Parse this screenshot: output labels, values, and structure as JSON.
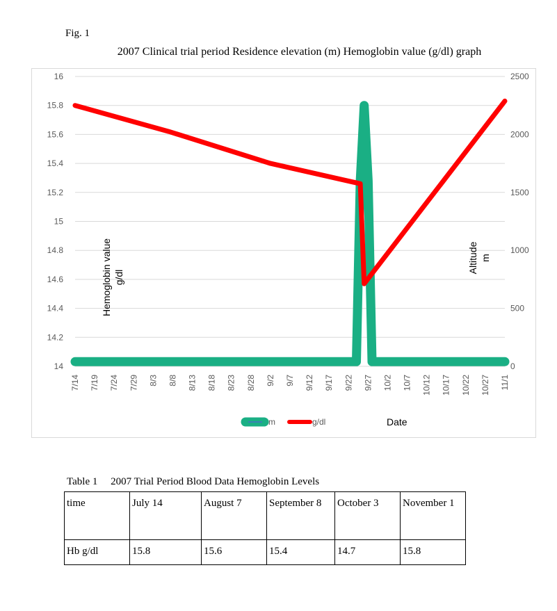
{
  "figure": {
    "label": "Fig. 1",
    "title": "2007 Clinical trial period Residence elevation (m) Hemoglobin value (g/dl) graph"
  },
  "chart_data": {
    "type": "line",
    "x_tick_labels": [
      "7/14",
      "7/19",
      "7/24",
      "7/29",
      "8/3",
      "8/8",
      "8/13",
      "8/18",
      "8/23",
      "8/28",
      "9/2",
      "9/7",
      "9/12",
      "9/17",
      "9/22",
      "9/27",
      "10/2",
      "10/7",
      "10/12",
      "10/17",
      "10/22",
      "10/27",
      "11/1"
    ],
    "xlabel": "Date",
    "ylabel_left": "Hemoglobin value g/dl",
    "ylabel_left_lines": [
      "Hemoglobin value",
      "g/dl"
    ],
    "ylabel_right": "Altitude m",
    "ylabel_right_lines": [
      "Altitude",
      "m"
    ],
    "yleft_lim": [
      14,
      16
    ],
    "yleft_ticks": [
      "16",
      "15.8",
      "15.6",
      "15.4",
      "15.2",
      "15",
      "14.8",
      "14.6",
      "14.4",
      "14.2",
      "14"
    ],
    "yright_lim": [
      0,
      2500
    ],
    "yright_ticks": [
      "2500",
      "2000",
      "1500",
      "1000",
      "500",
      "0"
    ],
    "grid": true,
    "legend_position": "bottom",
    "series": [
      {
        "name": "m",
        "axis": "right",
        "color": "#1aaf84",
        "points": [
          {
            "x": "7/14",
            "y": 40
          },
          {
            "x": "9/24",
            "y": 40
          },
          {
            "x": "9/25",
            "y": 1600
          },
          {
            "x": "9/26",
            "y": 2250
          },
          {
            "x": "9/27",
            "y": 1600
          },
          {
            "x": "9/28",
            "y": 40
          },
          {
            "x": "11/1",
            "y": 40
          }
        ]
      },
      {
        "name": "g/dl",
        "axis": "left",
        "color": "#ff0000",
        "points": [
          {
            "x": "7/14",
            "y": 15.8
          },
          {
            "x": "8/7",
            "y": 15.62
          },
          {
            "x": "9/2",
            "y": 15.4
          },
          {
            "x": "9/25",
            "y": 15.26
          },
          {
            "x": "9/26",
            "y": 14.57
          },
          {
            "x": "11/1",
            "y": 15.83
          }
        ]
      }
    ]
  },
  "table": {
    "caption": "Table 1　 2007 Trial Period Blood Data Hemoglobin Levels",
    "rows": [
      [
        "time",
        "July 14",
        "August 7",
        "September 8",
        "October 3",
        "November 1"
      ],
      [
        "Hb g/dl",
        "15.8",
        "15.6",
        "15.4",
        "14.7",
        "15.8"
      ]
    ]
  }
}
